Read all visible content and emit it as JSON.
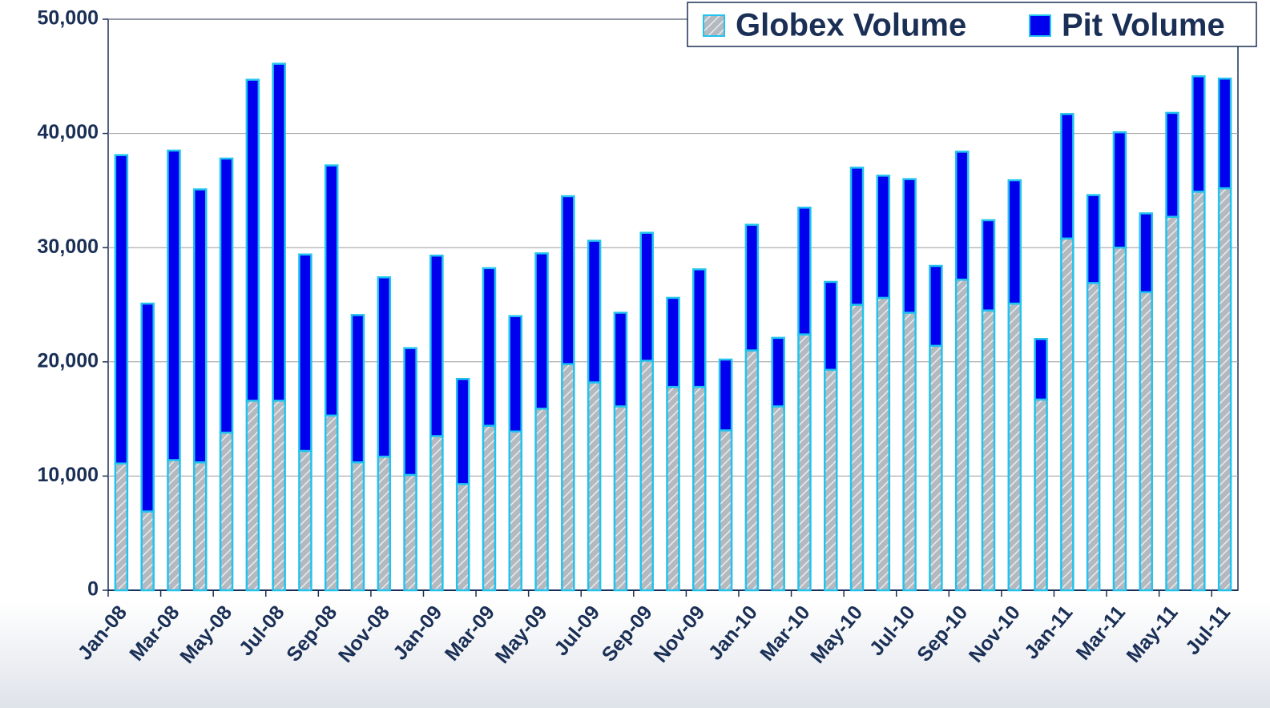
{
  "chart_data": {
    "type": "stacked-bar",
    "categories": [
      "Jan-08",
      null,
      "Mar-08",
      null,
      "May-08",
      null,
      "Jul-08",
      null,
      "Sep-08",
      null,
      "Nov-08",
      null,
      "Jan-09",
      null,
      "Mar-09",
      null,
      "May-09",
      null,
      "Jul-09",
      null,
      "Sep-09",
      null,
      "Nov-09",
      null,
      "Jan-10",
      null,
      "Mar-10",
      null,
      "May-10",
      null,
      "Jul-10",
      null,
      "Sep-10",
      null,
      "Nov-10",
      null,
      "Jan-11",
      null,
      "Mar-11",
      null,
      "May-11",
      null,
      "Jul-11"
    ],
    "series": [
      {
        "name": "Globex Volume",
        "color": "#b4b9c0",
        "values": [
          11100,
          6900,
          11400,
          11200,
          13800,
          16600,
          16600,
          12200,
          15300,
          11200,
          11700,
          10100,
          13500,
          9300,
          14400,
          13900,
          15900,
          19800,
          18200,
          16100,
          20100,
          17800,
          17800,
          14000,
          21000,
          16100,
          22400,
          19300,
          25000,
          25600,
          24300,
          21400,
          27200,
          24500,
          25100,
          16700,
          30800,
          26900,
          30000,
          26100,
          32700,
          34900,
          35200
        ]
      },
      {
        "name": "Pit Volume",
        "color": "#0000ee",
        "values": [
          27000,
          18200,
          27100,
          23900,
          24000,
          28100,
          29500,
          17200,
          21900,
          12900,
          15700,
          11100,
          15800,
          9200,
          13800,
          10100,
          13600,
          14700,
          12400,
          8200,
          11200,
          7800,
          10300,
          6200,
          11000,
          6000,
          11100,
          7700,
          12000,
          10700,
          11700,
          7000,
          11200,
          7900,
          10800,
          5300,
          10900,
          7700,
          10100,
          6900,
          9100,
          10100,
          9600
        ]
      }
    ],
    "bar_edge_color": "#22c3ee",
    "ylim": [
      0,
      50000
    ],
    "yticks": [
      0,
      {
        "value": 10000,
        "label": "10,000"
      },
      {
        "value": 20000,
        "label": "20,000"
      },
      {
        "value": 30000,
        "label": "30,000"
      },
      {
        "value": 40000,
        "label": "40,000"
      },
      {
        "value": 50000,
        "label": "50,000"
      }
    ],
    "grid": true,
    "legend": "top-right"
  }
}
